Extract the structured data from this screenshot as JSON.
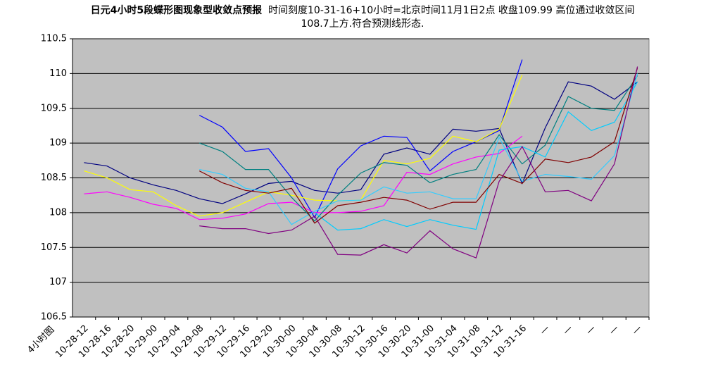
{
  "chart_data": {
    "type": "line",
    "title": "日元4小时5段蝶形图现象型收敛点预报",
    "subtitle": "时间刻度10-31-16+10小时=北京时间11月1日2点 收盘109.99 高位通过收敛区间108.7上方.符合预测线形态.",
    "x_label": "4小时图",
    "categories": [
      "10-28-12",
      "10-28-16",
      "10-28-20",
      "10-29-00",
      "10-29-04",
      "10-29-08",
      "10-29-12",
      "10-29-16",
      "10-29-20",
      "10-30-00",
      "10-30-04",
      "10-30-08",
      "10-30-12",
      "10-30-16",
      "10-30-20",
      "10-31-00",
      "10-31-04",
      "10-31-08",
      "10-31-12",
      "10-31-16",
      "—",
      "—",
      "—",
      "—",
      "—"
    ],
    "ylim": [
      106.5,
      110.5
    ],
    "yticks": [
      106.5,
      107,
      107.5,
      108,
      108.5,
      109,
      109.5,
      110,
      110.5
    ],
    "grid": true,
    "series": [
      {
        "color": "#000080",
        "values": [
          108.72,
          108.67,
          108.5,
          108.4,
          108.32,
          108.2,
          108.13,
          108.27,
          108.42,
          108.45,
          108.32,
          108.28,
          108.33,
          108.84,
          108.93,
          108.84,
          109.2,
          109.17,
          109.21,
          108.42,
          109.22,
          109.88,
          109.82,
          109.63,
          109.88
        ]
      },
      {
        "color": "#0000ff",
        "values": [
          null,
          null,
          null,
          null,
          null,
          109.4,
          109.23,
          108.88,
          108.92,
          108.5,
          107.93,
          108.63,
          108.96,
          109.1,
          109.08,
          108.6,
          108.88,
          109.02,
          109.18,
          110.2,
          null,
          null,
          null,
          null,
          null
        ]
      },
      {
        "color": "#ffff00",
        "values": [
          108.6,
          108.5,
          108.33,
          108.3,
          108.1,
          107.95,
          108.0,
          108.15,
          108.3,
          108.25,
          108.18,
          108.17,
          108.18,
          108.75,
          108.7,
          108.78,
          109.1,
          109.02,
          109.2,
          109.98,
          null,
          null,
          null,
          null,
          null
        ]
      },
      {
        "color": "#ff00ff",
        "values": [
          108.27,
          108.3,
          108.22,
          108.12,
          108.06,
          107.9,
          107.92,
          107.98,
          108.13,
          108.15,
          108.0,
          108.0,
          108.02,
          108.1,
          108.58,
          108.55,
          108.7,
          108.8,
          108.85,
          109.1,
          null,
          null,
          null,
          null,
          null
        ]
      },
      {
        "color": "#008080",
        "values": [
          null,
          null,
          null,
          null,
          null,
          109.0,
          108.88,
          108.62,
          108.62,
          108.22,
          107.88,
          108.25,
          108.57,
          108.72,
          108.68,
          108.43,
          108.55,
          108.62,
          109.12,
          108.7,
          108.97,
          109.67,
          109.5,
          109.47,
          109.97
        ]
      },
      {
        "color": "#33ccff",
        "values": [
          null,
          null,
          null,
          null,
          null,
          108.62,
          108.55,
          108.35,
          108.3,
          107.83,
          108.02,
          108.17,
          108.18,
          108.37,
          108.28,
          108.3,
          108.2,
          108.2,
          109.08,
          108.45,
          108.55,
          108.52,
          108.48,
          108.82,
          110.0
        ]
      },
      {
        "color": "#00ccff",
        "values": [
          null,
          null,
          null,
          null,
          null,
          null,
          null,
          null,
          null,
          null,
          108.0,
          107.75,
          107.77,
          107.9,
          107.8,
          107.9,
          107.82,
          107.76,
          108.9,
          108.95,
          108.8,
          109.45,
          109.18,
          109.3,
          109.88
        ]
      },
      {
        "color": "#800000",
        "values": [
          null,
          null,
          null,
          null,
          null,
          108.6,
          108.43,
          108.32,
          108.28,
          108.35,
          107.85,
          108.1,
          108.15,
          108.22,
          108.18,
          108.05,
          108.15,
          108.15,
          108.55,
          108.42,
          108.77,
          108.72,
          108.8,
          109.02,
          110.08
        ]
      },
      {
        "color": "#800080",
        "values": [
          null,
          null,
          null,
          null,
          null,
          107.81,
          107.77,
          107.77,
          107.7,
          107.75,
          107.95,
          107.4,
          107.39,
          107.54,
          107.42,
          107.74,
          107.48,
          107.35,
          108.45,
          108.95,
          108.3,
          108.32,
          108.17,
          108.7,
          110.1
        ]
      }
    ]
  }
}
